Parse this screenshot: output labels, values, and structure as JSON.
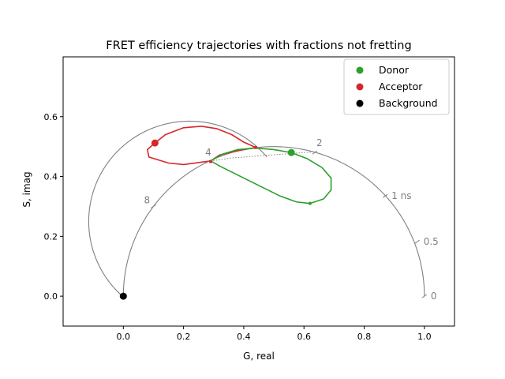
{
  "chart_data": {
    "type": "line",
    "title": "FRET efficiency trajectories with fractions not fretting",
    "xlabel": "G, real",
    "ylabel": "S, imag",
    "xlim": [
      -0.2,
      1.1
    ],
    "ylim": [
      -0.1,
      0.8
    ],
    "xticks": [
      0.0,
      0.2,
      0.4,
      0.6,
      0.8,
      1.0
    ],
    "xtick_labels": [
      "0.0",
      "0.2",
      "0.4",
      "0.6",
      "0.8",
      "1.0"
    ],
    "yticks": [
      0.0,
      0.2,
      0.4,
      0.6
    ],
    "ytick_labels": [
      "0.0",
      "0.2",
      "0.4",
      "0.6"
    ],
    "grid": false,
    "legend": {
      "placement": "top-right",
      "entries": [
        {
          "label": "Donor",
          "color": "#2ca02c"
        },
        {
          "label": "Acceptor",
          "color": "#d62728"
        },
        {
          "label": "Background",
          "color": "#000000"
        }
      ]
    },
    "lifetime_labels": [
      {
        "label": "0",
        "x": 1.0,
        "y": 0.0
      },
      {
        "label": "0.5",
        "x": 0.976,
        "y": 0.182
      },
      {
        "label": "1 ns",
        "x": 0.87,
        "y": 0.335
      },
      {
        "label": "2",
        "x": 0.636,
        "y": 0.48
      },
      {
        "label": "4",
        "x": 0.28,
        "y": 0.449
      },
      {
        "label": "8",
        "x": 0.1,
        "y": 0.3
      }
    ],
    "series": [
      {
        "name": "Donor",
        "color": "#2ca02c",
        "points": [
          {
            "x": 0.558,
            "y": 0.48
          },
          {
            "x": 0.29,
            "y": 0.45
          },
          {
            "x": 0.62,
            "y": 0.31
          }
        ]
      },
      {
        "name": "Acceptor",
        "color": "#d62728",
        "points": [
          {
            "x": 0.105,
            "y": 0.512
          },
          {
            "x": 0.44,
            "y": 0.497
          },
          {
            "x": 0.29,
            "y": 0.45
          }
        ]
      },
      {
        "name": "Background",
        "color": "#000000",
        "points": [
          {
            "x": 0.0,
            "y": 0.0
          }
        ]
      }
    ]
  }
}
